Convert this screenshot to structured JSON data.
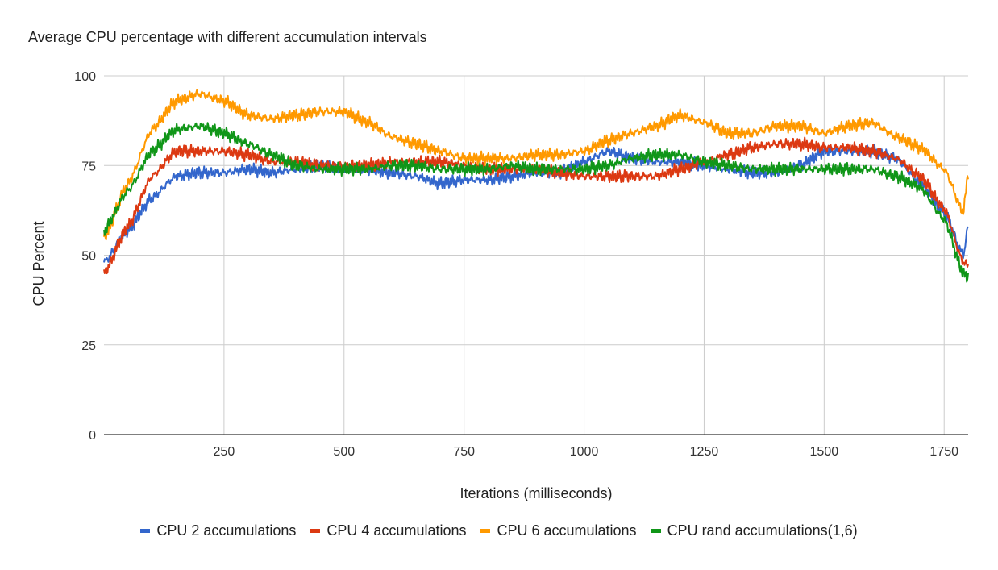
{
  "chart_data": {
    "type": "line",
    "title": "Average CPU percentage with different accumulation intervals",
    "xlabel": "Iterations (milliseconds)",
    "ylabel": "CPU Percent",
    "xlim": [
      0,
      1800
    ],
    "ylim": [
      0,
      100
    ],
    "x_ticks": [
      250,
      500,
      750,
      1000,
      1250,
      1500,
      1750
    ],
    "y_ticks": [
      0,
      25,
      50,
      75,
      100
    ],
    "grid": true,
    "legend_position": "bottom",
    "series": [
      {
        "name": "CPU 2 accumulations",
        "color": "#3366CC",
        "x": [
          0,
          50,
          100,
          150,
          200,
          250,
          300,
          350,
          400,
          450,
          500,
          550,
          600,
          650,
          700,
          750,
          800,
          850,
          900,
          950,
          1000,
          1050,
          1100,
          1150,
          1200,
          1250,
          1300,
          1350,
          1400,
          1450,
          1500,
          1550,
          1600,
          1650,
          1700,
          1750,
          1790,
          1800
        ],
        "values": [
          48,
          57,
          66,
          72,
          73,
          73,
          74,
          73,
          74,
          75,
          74,
          74,
          73,
          72,
          70,
          71,
          71,
          72,
          73,
          73,
          76,
          79,
          77,
          76,
          76,
          75,
          74,
          73,
          73,
          75,
          79,
          79,
          79,
          77,
          70,
          62,
          50,
          58
        ]
      },
      {
        "name": "CPU 4 accumulations",
        "color": "#DC3912",
        "x": [
          0,
          50,
          100,
          150,
          200,
          250,
          300,
          350,
          400,
          450,
          500,
          550,
          600,
          650,
          700,
          750,
          800,
          850,
          900,
          950,
          1000,
          1050,
          1100,
          1150,
          1200,
          1250,
          1300,
          1350,
          1400,
          1450,
          1500,
          1550,
          1600,
          1650,
          1700,
          1750,
          1790,
          1800
        ],
        "values": [
          45,
          58,
          72,
          79,
          79,
          79,
          78,
          76,
          76,
          75,
          75,
          75,
          76,
          76,
          76,
          75,
          74,
          74,
          74,
          73,
          72,
          72,
          72,
          72,
          74,
          76,
          78,
          80,
          81,
          81,
          80,
          80,
          79,
          77,
          72,
          63,
          48,
          47
        ]
      },
      {
        "name": "CPU 6 accumulations",
        "color": "#FF9900",
        "x": [
          0,
          50,
          100,
          150,
          200,
          250,
          300,
          350,
          400,
          450,
          500,
          550,
          600,
          650,
          700,
          750,
          800,
          850,
          900,
          950,
          1000,
          1050,
          1100,
          1150,
          1200,
          1250,
          1300,
          1350,
          1400,
          1450,
          1500,
          1550,
          1600,
          1650,
          1700,
          1750,
          1790,
          1800
        ],
        "values": [
          55,
          70,
          85,
          93,
          95,
          93,
          89,
          88,
          89,
          90,
          90,
          87,
          83,
          81,
          79,
          77,
          77,
          77,
          78,
          78,
          79,
          82,
          84,
          86,
          89,
          87,
          84,
          84,
          86,
          86,
          84,
          86,
          87,
          83,
          80,
          74,
          62,
          73
        ]
      },
      {
        "name": "CPU rand accumulations(1,6)",
        "color": "#109618",
        "x": [
          0,
          50,
          100,
          150,
          200,
          250,
          300,
          350,
          400,
          450,
          500,
          550,
          600,
          650,
          700,
          750,
          800,
          850,
          900,
          950,
          1000,
          1050,
          1100,
          1150,
          1200,
          1250,
          1300,
          1350,
          1400,
          1450,
          1500,
          1550,
          1600,
          1650,
          1700,
          1750,
          1790,
          1800
        ],
        "values": [
          57,
          68,
          79,
          85,
          86,
          84,
          81,
          78,
          75,
          74,
          74,
          74,
          75,
          75,
          74,
          74,
          74,
          75,
          74,
          74,
          74,
          75,
          77,
          78,
          78,
          76,
          75,
          74,
          74,
          74,
          74,
          74,
          74,
          72,
          69,
          60,
          45,
          44
        ]
      }
    ]
  }
}
